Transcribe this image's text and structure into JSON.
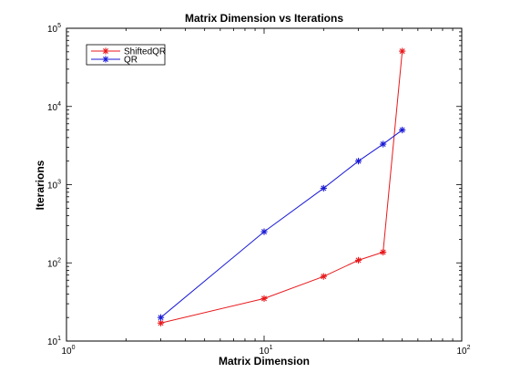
{
  "chart_data": {
    "type": "line",
    "title": "Matrix Dimension vs Iterations",
    "xlabel": "Matrix Dimension",
    "ylabel": "Iterarions",
    "xscale": "log",
    "yscale": "log",
    "xlim": [
      1,
      100
    ],
    "ylim": [
      10,
      100000
    ],
    "x_ticks": [
      {
        "value": 1,
        "base": "10",
        "exp": "0"
      },
      {
        "value": 10,
        "base": "10",
        "exp": "1"
      },
      {
        "value": 100,
        "base": "10",
        "exp": "2"
      }
    ],
    "y_ticks": [
      {
        "value": 10,
        "base": "10",
        "exp": "1"
      },
      {
        "value": 100,
        "base": "10",
        "exp": "2"
      },
      {
        "value": 1000,
        "base": "10",
        "exp": "3"
      },
      {
        "value": 10000,
        "base": "10",
        "exp": "4"
      },
      {
        "value": 100000,
        "base": "10",
        "exp": "5"
      }
    ],
    "grid": false,
    "legend_position": "top-left",
    "series": [
      {
        "name": "ShiftedQR",
        "color": "#e8191c",
        "marker": "asterisk",
        "x": [
          3,
          10,
          20,
          30,
          40,
          50
        ],
        "y": [
          17,
          35,
          67,
          108,
          137,
          51000
        ]
      },
      {
        "name": "QR",
        "color": "#1a1ad6",
        "marker": "asterisk",
        "x": [
          3,
          10,
          20,
          30,
          40,
          50
        ],
        "y": [
          20,
          250,
          900,
          2000,
          3300,
          5000
        ]
      }
    ]
  }
}
